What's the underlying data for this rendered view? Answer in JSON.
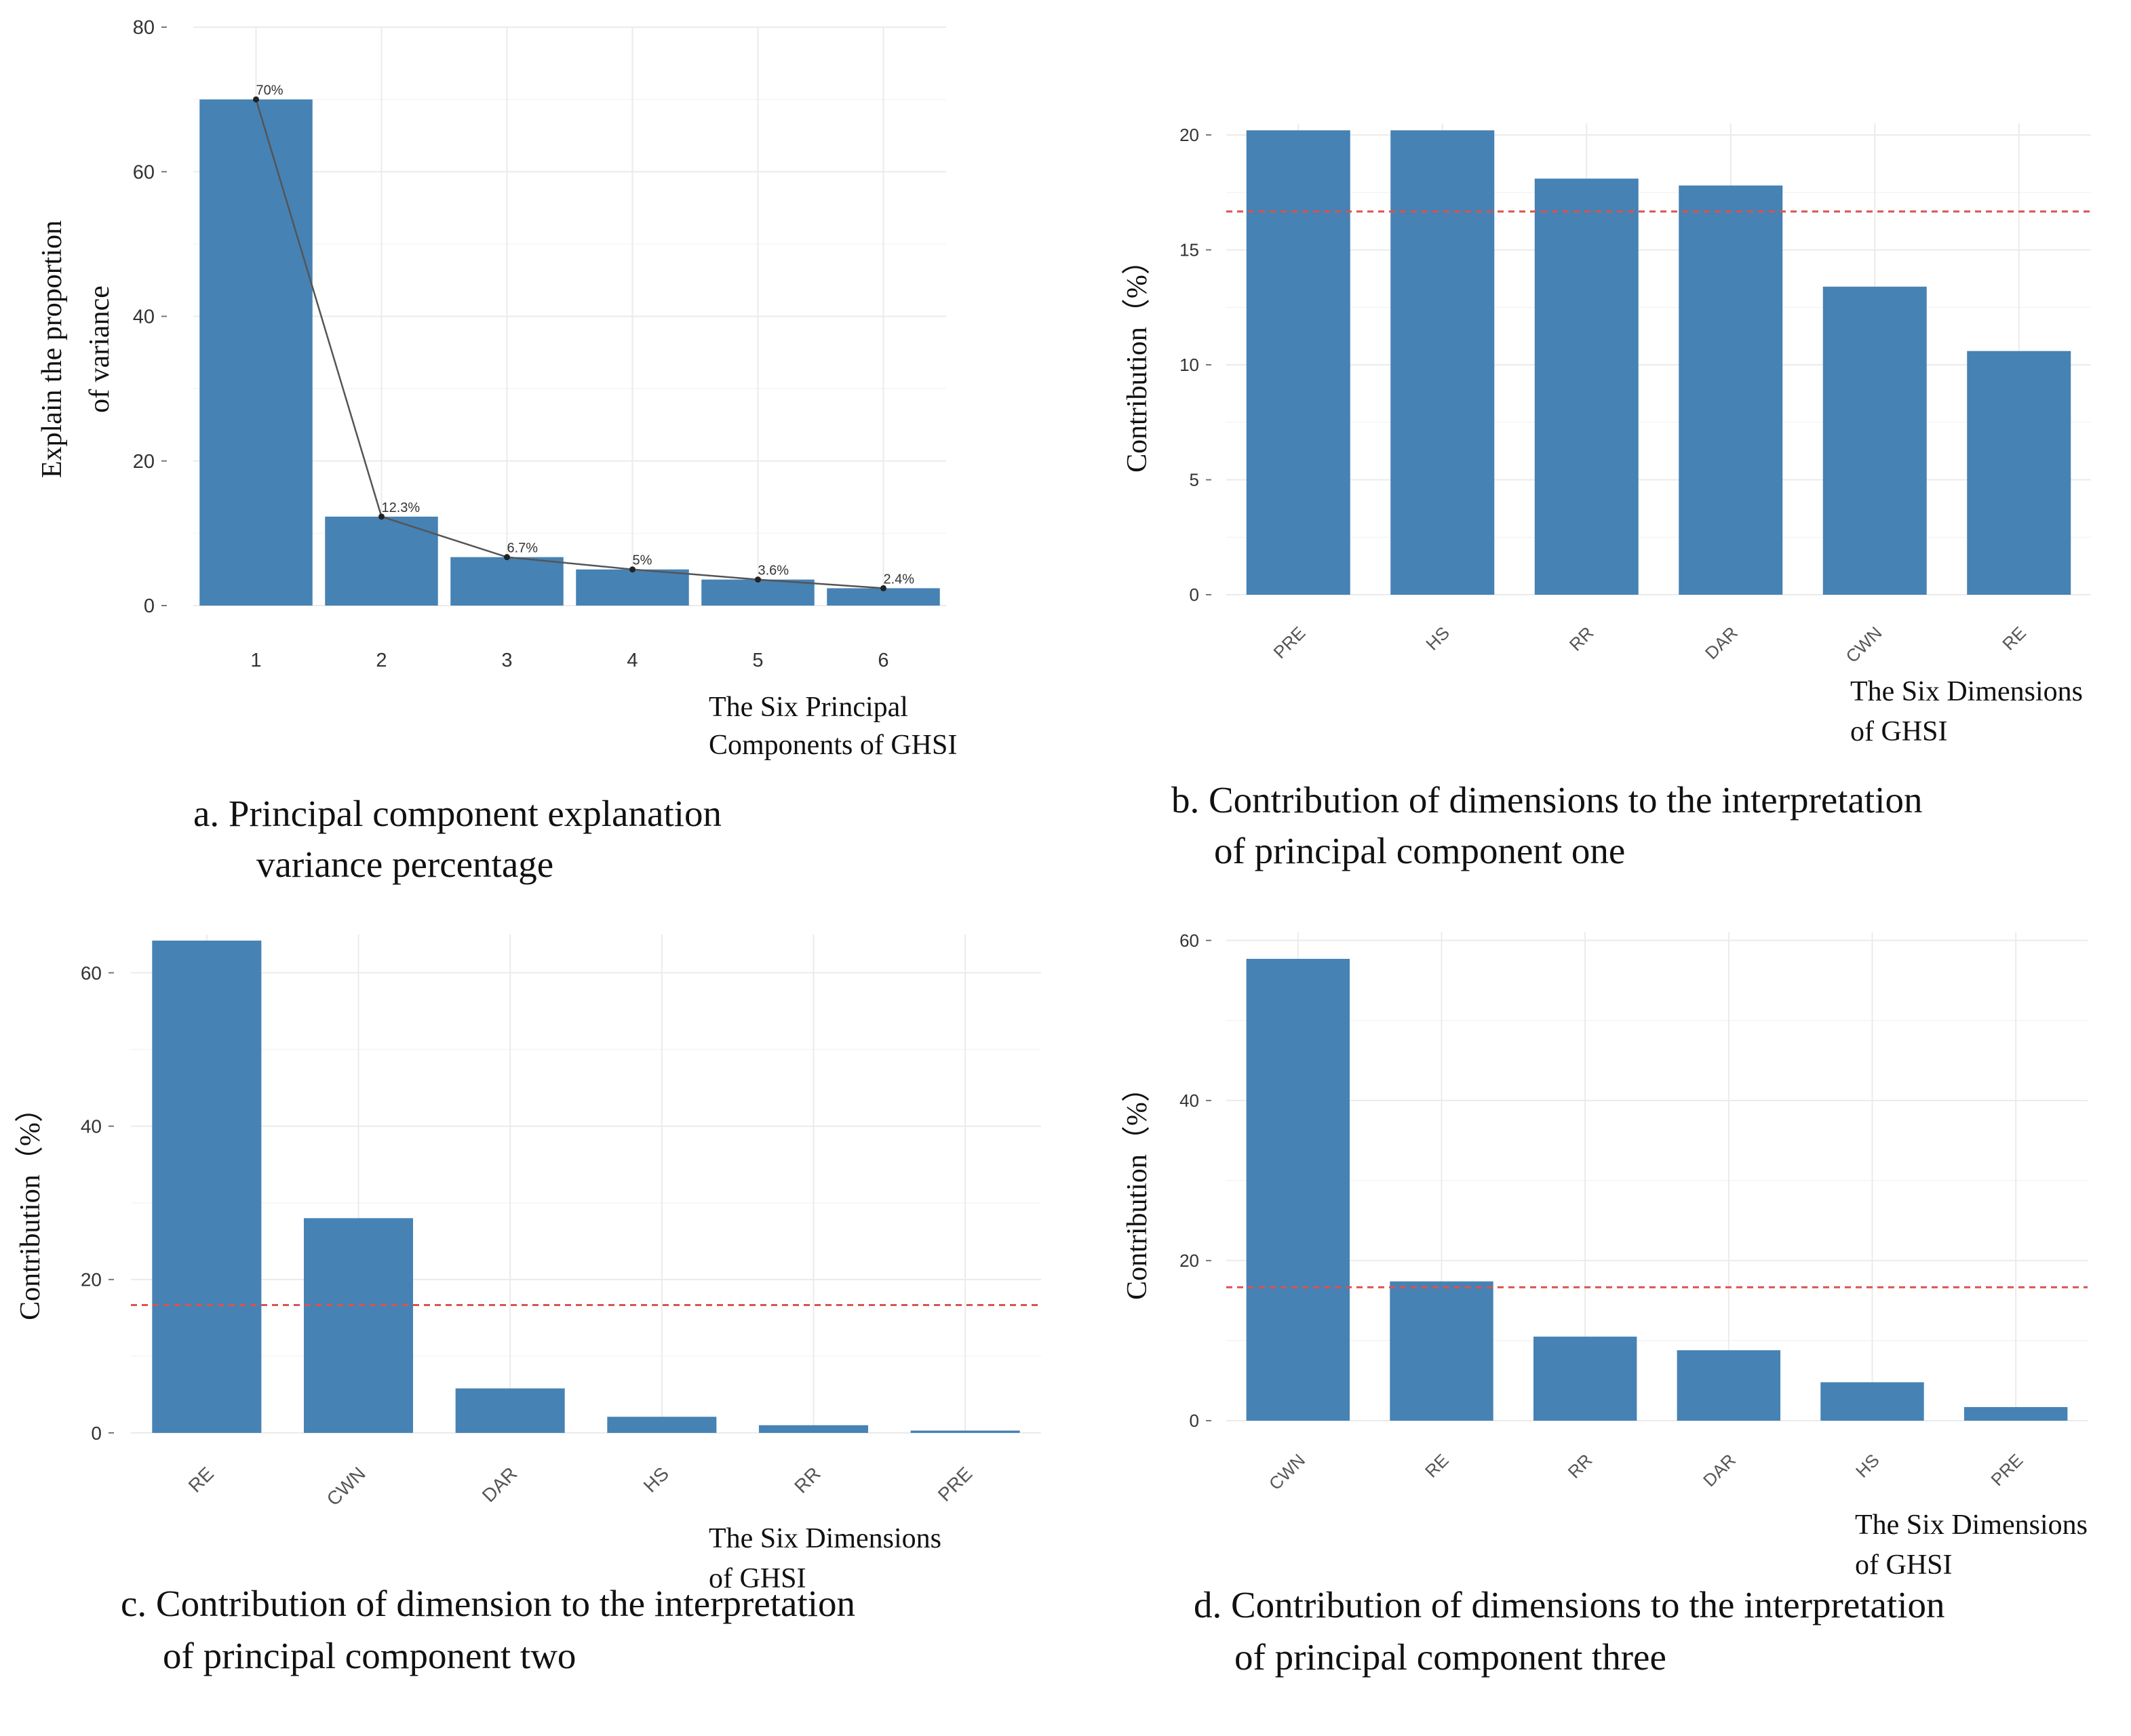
{
  "chart_data": [
    {
      "id": "a",
      "type": "bar",
      "categories": [
        "1",
        "2",
        "3",
        "4",
        "5",
        "6"
      ],
      "values": [
        70,
        12.3,
        6.7,
        5,
        3.6,
        2.4
      ],
      "data_labels": [
        "70%",
        "12.3%",
        "6.7%",
        "5%",
        "3.6%",
        "2.4%"
      ],
      "line_overlay": true,
      "ylabel": "Explain the proportion of variance",
      "ylabel_lines": [
        "Explain the proportion",
        "of variance"
      ],
      "xlabel_lines": [
        "The Six Principal",
        "Components of GHSI"
      ],
      "ylim": [
        0,
        80
      ],
      "yticks": [
        0,
        20,
        40,
        60,
        80
      ],
      "grid": true,
      "caption": [
        "a. Principal component explanation",
        "variance percentage"
      ]
    },
    {
      "id": "b",
      "type": "bar",
      "categories": [
        "PRE",
        "HS",
        "RR",
        "DAR",
        "CWN",
        "RE"
      ],
      "values": [
        20.2,
        20.2,
        18.1,
        17.8,
        13.4,
        10.6
      ],
      "reference_line": 16.67,
      "ylabel": "Contribution（%）",
      "xlabel_lines": [
        "The Six Dimensions",
        "of GHSI"
      ],
      "ylim": [
        0,
        20.5
      ],
      "yticks": [
        0,
        5,
        10,
        15,
        20
      ],
      "grid": true,
      "caption": [
        "b. Contribution of dimensions to the interpretation",
        "of  principal component one"
      ]
    },
    {
      "id": "c",
      "type": "bar",
      "categories": [
        "RE",
        "CWN",
        "DAR",
        "HS",
        "RR",
        "PRE"
      ],
      "values": [
        64.2,
        28,
        5.8,
        2.1,
        1,
        0.3
      ],
      "reference_line": 16.67,
      "ylabel": "Contribution（%）",
      "xlabel_lines": [
        "The Six Dimensions",
        "of GHSI"
      ],
      "ylim": [
        0,
        65
      ],
      "yticks": [
        0,
        20,
        40,
        60
      ],
      "grid": true,
      "caption": [
        "c. Contribution of dimension to the interpretation",
        "of  principal component two"
      ]
    },
    {
      "id": "d",
      "type": "bar",
      "categories": [
        "CWN",
        "RE",
        "RR",
        "DAR",
        "HS",
        "PRE"
      ],
      "values": [
        57.7,
        17.4,
        10.5,
        8.8,
        4.8,
        1.7
      ],
      "reference_line": 16.67,
      "ylabel": "Contribution（%）",
      "xlabel_lines": [
        "The Six Dimensions",
        "of GHSI"
      ],
      "ylim": [
        0,
        61
      ],
      "yticks": [
        0,
        20,
        40,
        60
      ],
      "grid": true,
      "caption": [
        "d. Contribution of dimensions to the interpretation",
        "of  principal component three"
      ]
    }
  ],
  "colors": {
    "bar": "#4682b4",
    "reference_line": "#d9534f",
    "overlay_line": "#555555",
    "grid": "#ebebeb"
  }
}
